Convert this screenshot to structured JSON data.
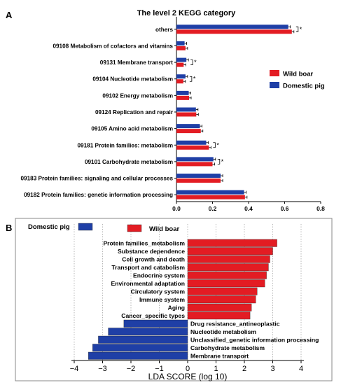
{
  "panelA": {
    "label": "A",
    "chart_data": {
      "type": "bar",
      "title": "The level 2 KEGG category",
      "orientation": "horizontal",
      "categories": [
        "others",
        "09108 Metabolism of cofactors and vitamins",
        "09131 Membrane transport",
        "09104 Nucleotide metabolism",
        "09102 Energy metabolism",
        "09124 Replication and repair",
        "09105 Amino acid metabolism",
        "09181 Protein families: metabolism",
        "09101 Carbohydrate metabolism",
        "09183 Protein families: signaling and cellular processes",
        "09182 Protein families: genetic information processing"
      ],
      "series": [
        {
          "name": "Domestic pig",
          "color": "#1f3fa6",
          "values": [
            0.62,
            0.045,
            0.055,
            0.05,
            0.068,
            0.108,
            0.13,
            0.165,
            0.205,
            0.245,
            0.375
          ]
        },
        {
          "name": "Wild boar",
          "color": "#e31c23",
          "values": [
            0.64,
            0.05,
            0.04,
            0.038,
            0.07,
            0.11,
            0.135,
            0.18,
            0.2,
            0.245,
            0.38
          ]
        }
      ],
      "significant": [
        "*",
        "",
        "*",
        "*",
        "",
        "",
        "",
        "*",
        "*",
        "",
        ""
      ],
      "xlim": [
        0,
        0.8
      ],
      "xticks": [
        "0.0",
        "0.2",
        "0.4",
        "0.6",
        "0.8"
      ],
      "legend_position": "right"
    }
  },
  "panelB": {
    "label": "B",
    "chart_data": {
      "type": "bar",
      "orientation": "horizontal",
      "xlabel": "LDA SCORE (log 10)",
      "xlim": [
        -4,
        4
      ],
      "xticks": [
        "−4",
        "−3",
        "−2",
        "−1",
        "0",
        "1",
        "2",
        "3",
        "4"
      ],
      "legend": [
        {
          "name": "Domestic pig",
          "color": "#1f3fa6"
        },
        {
          "name": "Wild boar",
          "color": "#e31c23"
        }
      ],
      "bars": [
        {
          "label": "Protein families_metabolism",
          "value": 3.15,
          "group": "Wild boar"
        },
        {
          "label": "Substance dependence",
          "value": 3.0,
          "group": "Wild boar"
        },
        {
          "label": "Cell growth and death",
          "value": 2.9,
          "group": "Wild boar"
        },
        {
          "label": "Transport and catabolism",
          "value": 2.85,
          "group": "Wild boar"
        },
        {
          "label": "Endocrine system",
          "value": 2.78,
          "group": "Wild boar"
        },
        {
          "label": "Environmental adaptation",
          "value": 2.72,
          "group": "Wild boar"
        },
        {
          "label": "Circulatory system",
          "value": 2.45,
          "group": "Wild boar"
        },
        {
          "label": "Immune system",
          "value": 2.4,
          "group": "Wild boar"
        },
        {
          "label": "Aging",
          "value": 2.25,
          "group": "Wild boar"
        },
        {
          "label": "Cancer_specific types",
          "value": 2.2,
          "group": "Wild boar"
        },
        {
          "label": "Drug resistance_antineoplastic",
          "value": -2.25,
          "group": "Domestic pig"
        },
        {
          "label": "Nucleotide metabolism",
          "value": -2.8,
          "group": "Domestic pig"
        },
        {
          "label": "Unclassified_genetic information processing",
          "value": -3.15,
          "group": "Domestic pig"
        },
        {
          "label": "Carbohydrate metabolism",
          "value": -3.35,
          "group": "Domestic pig"
        },
        {
          "label": "Membrane transport",
          "value": -3.5,
          "group": "Domestic pig"
        }
      ]
    }
  }
}
